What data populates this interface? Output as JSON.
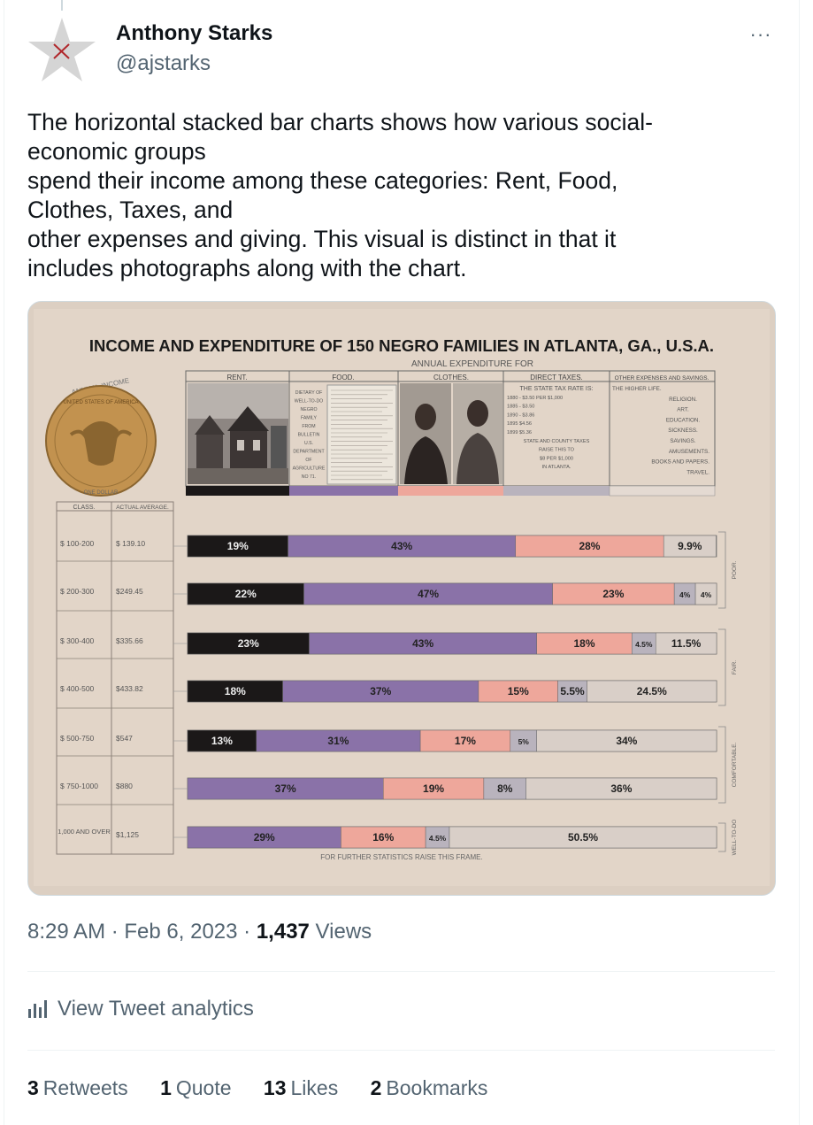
{
  "author": {
    "name": "Anthony Starks",
    "handle": "@ajstarks"
  },
  "more_label": "···",
  "tweet_lines": [
    "The horizontal stacked bar charts shows how various social-",
    "economic groups",
    "spend their income among these categories: Rent, Food,",
    "Clothes, Taxes, and",
    "other expenses and giving. This visual is distinct in that it",
    "includes photographs along with the chart."
  ],
  "image": {
    "title": "INCOME AND EXPENDITURE OF 150 NEGRO FAMILIES IN ATLANTA, GA., U.S.A.",
    "annual_expenditure_for": "ANNUAL EXPENDITURE FOR",
    "annual_income": "ANNUAL INCOME",
    "coin_top": "UNITED STATES OF AMERICA",
    "coin_bottom": "ONE DOLLAR",
    "col_headers": [
      "RENT.",
      "FOOD.",
      "CLOTHES.",
      "DIRECT TAXES.",
      "OTHER EXPENSES AND SAVINGS."
    ],
    "food_note": [
      "DIETARY OF",
      "WELL-TO-DO",
      "NEGRO",
      "FAMILY",
      "FROM",
      "BULLETIN",
      "U.S.",
      "DEPARTMENT",
      "OF",
      "AGRICULTURE",
      "NO 71."
    ],
    "tax_note": [
      "THE STATE TAX RATE IS:",
      "1880 - $3.50 PER $1,000",
      "1885 - $3.50",
      "1890 - $3.86",
      "1895 $4.56",
      "1899 $5.36",
      "STATE AND COUNTY TAXES",
      "RAISE THIS TO",
      "$8 PER $1,000",
      "IN ATLANTA."
    ],
    "other_note": [
      "THE HIGHER LIFE.",
      "RELIGION.",
      "ART.",
      "EDUCATION.",
      "SICKNESS.",
      "SAVINGS.",
      "AMUSEMENTS.",
      "BOOKS AND PAPERS.",
      "TRAVEL."
    ],
    "class_header": "CLASS.",
    "avg_header": "ACTUAL AVERAGE.",
    "rows": [
      {
        "class": "$ 100-200",
        "avg": "$ 139.10",
        "segments": [
          {
            "cat": "rent",
            "value": 19,
            "label": "19%"
          },
          {
            "cat": "food",
            "value": 43,
            "label": "43%"
          },
          {
            "cat": "clothes",
            "value": 28,
            "label": "28%"
          },
          {
            "cat": "other",
            "value": 9.9,
            "label": "9.9%"
          }
        ]
      },
      {
        "class": "$ 200-300",
        "avg": "$249.45",
        "segments": [
          {
            "cat": "rent",
            "value": 22,
            "label": "22%"
          },
          {
            "cat": "food",
            "value": 47,
            "label": "47%"
          },
          {
            "cat": "clothes",
            "value": 23,
            "label": "23%"
          },
          {
            "cat": "taxes",
            "value": 4,
            "label": "4%"
          },
          {
            "cat": "other",
            "value": 4,
            "label": "4%"
          }
        ]
      },
      {
        "class": "$ 300-400",
        "avg": "$335.66",
        "segments": [
          {
            "cat": "rent",
            "value": 23,
            "label": "23%"
          },
          {
            "cat": "food",
            "value": 43,
            "label": "43%"
          },
          {
            "cat": "clothes",
            "value": 18,
            "label": "18%"
          },
          {
            "cat": "taxes",
            "value": 4.5,
            "label": "4.5%"
          },
          {
            "cat": "other",
            "value": 11.5,
            "label": "11.5%"
          }
        ]
      },
      {
        "class": "$ 400-500",
        "avg": "$433.82",
        "segments": [
          {
            "cat": "rent",
            "value": 18,
            "label": "18%"
          },
          {
            "cat": "food",
            "value": 37,
            "label": "37%"
          },
          {
            "cat": "clothes",
            "value": 15,
            "label": "15%"
          },
          {
            "cat": "taxes",
            "value": 5.5,
            "label": "5.5%"
          },
          {
            "cat": "other",
            "value": 24.5,
            "label": "24.5%"
          }
        ]
      },
      {
        "class": "$ 500-750",
        "avg": "$547",
        "segments": [
          {
            "cat": "rent",
            "value": 13,
            "label": "13%"
          },
          {
            "cat": "food",
            "value": 31,
            "label": "31%"
          },
          {
            "cat": "clothes",
            "value": 17,
            "label": "17%"
          },
          {
            "cat": "taxes",
            "value": 5,
            "label": "5%"
          },
          {
            "cat": "other",
            "value": 34,
            "label": "34%"
          }
        ]
      },
      {
        "class": "$ 750-1000",
        "avg": "$880",
        "segments": [
          {
            "cat": "food",
            "value": 37,
            "label": "37%"
          },
          {
            "cat": "clothes",
            "value": 19,
            "label": "19%"
          },
          {
            "cat": "taxes",
            "value": 8,
            "label": "8%"
          },
          {
            "cat": "other",
            "value": 36,
            "label": "36%"
          }
        ]
      },
      {
        "class": "1,000 AND OVER",
        "avg": "$1,125",
        "segments": [
          {
            "cat": "food",
            "value": 29,
            "label": "29%"
          },
          {
            "cat": "clothes",
            "value": 16,
            "label": "16%"
          },
          {
            "cat": "taxes",
            "value": 4.5,
            "label": "4.5%"
          },
          {
            "cat": "other",
            "value": 50.5,
            "label": "50.5%"
          }
        ]
      }
    ],
    "groups": [
      {
        "label": "POOR.",
        "rows": [
          0,
          1
        ]
      },
      {
        "label": "FAIR.",
        "rows": [
          2,
          3
        ]
      },
      {
        "label": "COMFORTABLE.",
        "rows": [
          4,
          5
        ]
      },
      {
        "label": "WELL-TO-DO",
        "rows": [
          6,
          6
        ]
      }
    ],
    "footer": "FOR FURTHER STATISTICS RAISE THIS FRAME.",
    "colors": {
      "rent": "#1b1818",
      "food": "#8a72a8",
      "clothes": "#eea79b",
      "taxes": "#b9b3bd",
      "other": "#d9cfc8",
      "paper": "#dccfc2",
      "ink": "#2a2a2a"
    }
  },
  "meta": {
    "time": "8:29 AM",
    "sep1": " · ",
    "date": "Feb 6, 2023",
    "sep2": " · ",
    "views_count": "1,437",
    "views_label": " Views"
  },
  "analytics_label": "View Tweet analytics",
  "stats": [
    {
      "count": "3",
      "label": "Retweets"
    },
    {
      "count": "1",
      "label": "Quote"
    },
    {
      "count": "13",
      "label": "Likes"
    },
    {
      "count": "2",
      "label": "Bookmarks"
    }
  ]
}
